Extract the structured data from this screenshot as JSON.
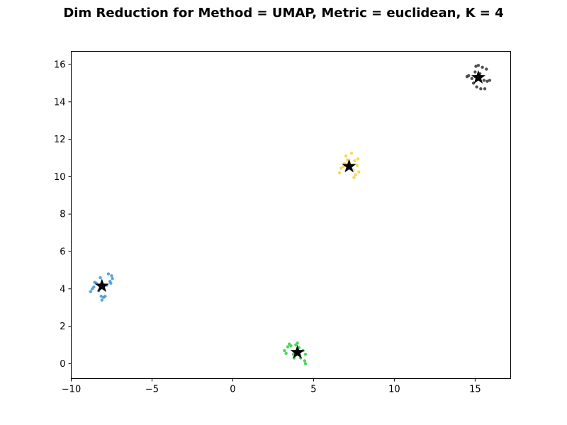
{
  "chart_data": {
    "type": "scatter",
    "title": "Dim Reduction for Method = UMAP, Metric = euclidean, K = 4",
    "xlabel": "",
    "ylabel": "",
    "xlim": [
      -10,
      17.2
    ],
    "ylim": [
      -0.8,
      16.7
    ],
    "x_ticks": [
      -10,
      -5,
      0,
      5,
      10,
      15
    ],
    "y_ticks": [
      0,
      2,
      4,
      6,
      8,
      10,
      12,
      14,
      16
    ],
    "grid": false,
    "legend": "none",
    "series": [
      {
        "color": "#3a96d8",
        "points": [
          [
            -8.8,
            3.85
          ],
          [
            -8.7,
            4.0
          ],
          [
            -8.6,
            4.1
          ],
          [
            -8.55,
            4.35
          ],
          [
            -8.45,
            4.3
          ],
          [
            -8.3,
            3.9
          ],
          [
            -8.2,
            4.6
          ],
          [
            -8.15,
            3.6
          ],
          [
            -8.1,
            3.4
          ],
          [
            -8.0,
            3.55
          ],
          [
            -7.9,
            3.6
          ],
          [
            -7.8,
            4.2
          ],
          [
            -7.7,
            4.8
          ],
          [
            -7.6,
            4.4
          ],
          [
            -7.5,
            4.7
          ],
          [
            -7.45,
            4.55
          ],
          [
            -7.55,
            4.3
          ]
        ],
        "centroid": [
          -8.1,
          4.15
        ]
      },
      {
        "color": "#2ecc40",
        "points": [
          [
            3.2,
            0.7
          ],
          [
            3.3,
            0.55
          ],
          [
            3.4,
            0.9
          ],
          [
            3.5,
            1.05
          ],
          [
            3.6,
            0.95
          ],
          [
            3.75,
            0.5
          ],
          [
            3.9,
            1.0
          ],
          [
            4.0,
            1.1
          ],
          [
            4.1,
            0.85
          ],
          [
            4.2,
            0.3
          ],
          [
            4.35,
            0.7
          ],
          [
            4.45,
            0.15
          ],
          [
            4.5,
            0.0
          ],
          [
            4.5,
            0.5
          ],
          [
            3.8,
            0.3
          ]
        ],
        "centroid": [
          4.0,
          0.6
        ]
      },
      {
        "color": "#f4d03f",
        "points": [
          [
            6.6,
            10.2
          ],
          [
            6.7,
            10.45
          ],
          [
            6.85,
            10.55
          ],
          [
            7.0,
            11.1
          ],
          [
            7.1,
            10.9
          ],
          [
            7.2,
            10.75
          ],
          [
            7.35,
            11.25
          ],
          [
            7.45,
            10.35
          ],
          [
            7.5,
            9.95
          ],
          [
            7.55,
            10.85
          ],
          [
            7.6,
            10.1
          ],
          [
            7.7,
            10.6
          ],
          [
            7.75,
            10.95
          ],
          [
            7.8,
            10.25
          ],
          [
            6.9,
            10.7
          ]
        ],
        "centroid": [
          7.2,
          10.55
        ]
      },
      {
        "color": "#333333",
        "points": [
          [
            14.5,
            15.35
          ],
          [
            14.6,
            15.4
          ],
          [
            14.8,
            15.25
          ],
          [
            14.9,
            15.0
          ],
          [
            15.0,
            15.6
          ],
          [
            15.05,
            15.9
          ],
          [
            15.1,
            14.8
          ],
          [
            15.2,
            15.95
          ],
          [
            15.3,
            15.5
          ],
          [
            15.35,
            14.7
          ],
          [
            15.45,
            15.85
          ],
          [
            15.55,
            15.15
          ],
          [
            15.6,
            14.7
          ],
          [
            15.7,
            15.75
          ],
          [
            15.75,
            15.1
          ],
          [
            15.9,
            15.15
          ]
        ],
        "centroid": [
          15.2,
          15.3
        ]
      }
    ]
  }
}
